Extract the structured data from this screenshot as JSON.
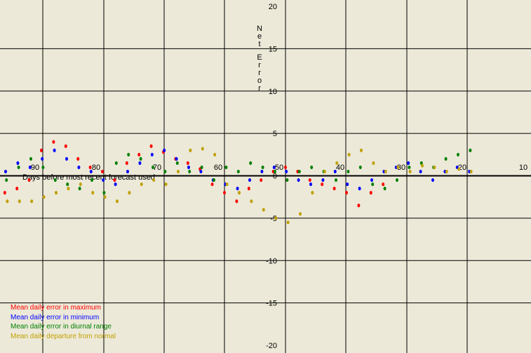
{
  "chart_data": {
    "type": "scatter",
    "title": "",
    "ylabel": "Net Error",
    "xlabel": "Days before most recent forecast used",
    "ylim": [
      -20,
      20
    ],
    "yticks": [
      "20",
      "15",
      "10",
      "5",
      "0",
      "-5",
      "-10",
      "-15",
      "-20"
    ],
    "xticks": [
      "90",
      "80",
      "70",
      "60",
      "50",
      "40",
      "30",
      "20",
      "10"
    ],
    "grid": true,
    "colors": {
      "max": "#ff0000",
      "min": "#0000ff",
      "range": "#008000",
      "normal": "#c0a000",
      "background": "#ece9d8"
    },
    "legend": [
      "Mean daily error in maximum",
      "Mean daily error in minimum",
      "Mean daily error in diurnal range",
      "Mean daily departure from normal"
    ],
    "legend_position": "bottom-left",
    "series": [
      {
        "name": "Mean daily error in maximum",
        "points": [
          [
            -100,
            1.5
          ],
          [
            -98,
            1
          ],
          [
            -95,
            2
          ],
          [
            -93,
            1.2
          ],
          [
            -91,
            0.8
          ],
          [
            -88,
            1.5
          ],
          [
            -86,
            -0.5
          ],
          [
            -84,
            -1
          ],
          [
            -82,
            2
          ],
          [
            -80,
            1.5
          ],
          [
            -78,
            1
          ],
          [
            -75,
            0.5
          ],
          [
            -73,
            -0.8
          ],
          [
            -70,
            0.5
          ],
          [
            -68,
            2
          ],
          [
            -66,
            3.5
          ],
          [
            -64,
            4
          ],
          [
            -62,
            3
          ],
          [
            -60,
            2.2
          ],
          [
            -58,
            1
          ],
          [
            -56,
            0.5
          ],
          [
            -54,
            1.5
          ],
          [
            -52,
            -1
          ],
          [
            -50,
            0.8
          ],
          [
            -48,
            -1.5
          ],
          [
            -46,
            -2
          ],
          [
            -44,
            -1.5
          ],
          [
            -42,
            -0.5
          ],
          [
            -40,
            3
          ],
          [
            -38,
            4
          ],
          [
            -36,
            3.5
          ],
          [
            -34,
            2
          ],
          [
            -32,
            1
          ],
          [
            -30,
            0.5
          ],
          [
            -28,
            -0.5
          ],
          [
            -26,
            1.5
          ],
          [
            -24,
            2.5
          ],
          [
            -22,
            3.5
          ],
          [
            -20,
            2.8
          ],
          [
            -18,
            2
          ],
          [
            -16,
            1.5
          ],
          [
            -14,
            0.8
          ],
          [
            -12,
            -1
          ],
          [
            -10,
            -2
          ],
          [
            -8,
            -3
          ],
          [
            -6,
            -1.5
          ],
          [
            -4,
            -0.5
          ],
          [
            -2,
            0.5
          ],
          [
            0,
            1
          ],
          [
            2,
            0.5
          ],
          [
            4,
            -0.5
          ],
          [
            6,
            -1
          ],
          [
            8,
            -1.5
          ],
          [
            10,
            -2
          ],
          [
            12,
            -3.5
          ],
          [
            14,
            -2
          ],
          [
            16,
            -1
          ]
        ]
      },
      {
        "name": "Mean daily error in minimum",
        "points": [
          [
            -100,
            2
          ],
          [
            -98,
            1.5
          ],
          [
            -95,
            1
          ],
          [
            -93,
            0.5
          ],
          [
            -91,
            -0.5
          ],
          [
            -88,
            -1
          ],
          [
            -86,
            -1.5
          ],
          [
            -84,
            0.5
          ],
          [
            -82,
            -1
          ],
          [
            -80,
            -0.5
          ],
          [
            -78,
            0.5
          ],
          [
            -75,
            -0.5
          ],
          [
            -73,
            -1
          ],
          [
            -70,
            1
          ],
          [
            -68,
            1.5
          ],
          [
            -66,
            2.5
          ],
          [
            -64,
            1
          ],
          [
            -62,
            0.5
          ],
          [
            -60,
            -0.5
          ],
          [
            -58,
            -1
          ],
          [
            -56,
            -2
          ],
          [
            -54,
            -1.5
          ],
          [
            -52,
            -2.5
          ],
          [
            -50,
            -1
          ],
          [
            -48,
            0
          ],
          [
            -46,
            0.5
          ],
          [
            -44,
            1.5
          ],
          [
            -42,
            1
          ],
          [
            -40,
            2
          ],
          [
            -38,
            3
          ],
          [
            -36,
            2
          ],
          [
            -34,
            1
          ],
          [
            -32,
            0.5
          ],
          [
            -30,
            -0.5
          ],
          [
            -28,
            -1
          ],
          [
            -26,
            0.5
          ],
          [
            -24,
            1.5
          ],
          [
            -22,
            2.5
          ],
          [
            -20,
            3
          ],
          [
            -18,
            2
          ],
          [
            -16,
            1
          ],
          [
            -14,
            0.5
          ],
          [
            -12,
            -0.5
          ],
          [
            -10,
            -1
          ],
          [
            -8,
            -1.5
          ],
          [
            -6,
            -0.5
          ],
          [
            -4,
            0.5
          ],
          [
            -2,
            1
          ],
          [
            0,
            0.5
          ],
          [
            2,
            -0.5
          ],
          [
            4,
            -1
          ],
          [
            6,
            -0.5
          ],
          [
            8,
            0.5
          ],
          [
            10,
            -1
          ],
          [
            12,
            -1.5
          ],
          [
            14,
            -0.5
          ],
          [
            16,
            0.5
          ],
          [
            18,
            1
          ],
          [
            20,
            1.5
          ],
          [
            22,
            0.5
          ],
          [
            24,
            -0.5
          ],
          [
            26,
            0.5
          ],
          [
            28,
            1
          ],
          [
            30,
            0.5
          ]
        ]
      },
      {
        "name": "Mean daily error in diurnal range",
        "points": [
          [
            -100,
            -0.5
          ],
          [
            -98,
            1
          ],
          [
            -95,
            2
          ],
          [
            -93,
            1.5
          ],
          [
            -91,
            0.5
          ],
          [
            -88,
            2.5
          ],
          [
            -86,
            1.5
          ],
          [
            -84,
            1
          ],
          [
            -82,
            1.5
          ],
          [
            -80,
            0.5
          ],
          [
            -78,
            -0.5
          ],
          [
            -75,
            1
          ],
          [
            -73,
            0.5
          ],
          [
            -70,
            -0.5
          ],
          [
            -68,
            1
          ],
          [
            -66,
            2
          ],
          [
            -64,
            3
          ],
          [
            -62,
            1.5
          ],
          [
            -60,
            0.5
          ],
          [
            -58,
            1
          ],
          [
            -56,
            -1
          ],
          [
            -54,
            -2.5
          ],
          [
            -52,
            -1.5
          ],
          [
            -50,
            0.5
          ],
          [
            -48,
            0.5
          ],
          [
            -46,
            -0.5
          ],
          [
            -44,
            1
          ],
          [
            -42,
            2
          ],
          [
            -40,
            1
          ],
          [
            -38,
            -0.5
          ],
          [
            -36,
            -1
          ],
          [
            -34,
            -1.5
          ],
          [
            -32,
            -0.5
          ],
          [
            -30,
            -2
          ],
          [
            -28,
            1.5
          ],
          [
            -26,
            2.5
          ],
          [
            -24,
            2
          ],
          [
            -22,
            1
          ],
          [
            -20,
            0.5
          ],
          [
            -18,
            1.5
          ],
          [
            -16,
            0.5
          ],
          [
            -14,
            1
          ],
          [
            -12,
            -0.5
          ],
          [
            -10,
            1
          ],
          [
            -8,
            0.5
          ],
          [
            -6,
            1.5
          ],
          [
            -4,
            1
          ],
          [
            -2,
            0.5
          ],
          [
            0,
            -0.5
          ],
          [
            2,
            0.5
          ],
          [
            4,
            1
          ],
          [
            6,
            0.5
          ],
          [
            8,
            -0.5
          ],
          [
            10,
            0.5
          ],
          [
            12,
            1
          ],
          [
            14,
            -1
          ],
          [
            16,
            -1.5
          ],
          [
            18,
            -0.5
          ],
          [
            20,
            1
          ],
          [
            22,
            1.5
          ],
          [
            24,
            1
          ],
          [
            26,
            2
          ],
          [
            28,
            2.5
          ],
          [
            30,
            3
          ]
        ]
      },
      {
        "name": "Mean daily departure from normal",
        "points": [
          [
            -100,
            -1
          ],
          [
            -98,
            -1.5
          ],
          [
            -95,
            -0.5
          ],
          [
            -93,
            0.5
          ],
          [
            -91,
            -1.5
          ],
          [
            -88,
            -2
          ],
          [
            -86,
            -1
          ],
          [
            -84,
            -2
          ],
          [
            -82,
            -1
          ],
          [
            -80,
            -2
          ],
          [
            -78,
            -1
          ],
          [
            -75,
            -0.5
          ],
          [
            -73,
            -1
          ],
          [
            -70,
            -1.5
          ],
          [
            -66,
            -0.5
          ],
          [
            -64,
            0.5
          ],
          [
            -56,
            2
          ],
          [
            -54,
            3.5
          ],
          [
            -52,
            2.5
          ],
          [
            -46,
            -3
          ],
          [
            -44,
            -3
          ],
          [
            -42,
            -3
          ],
          [
            -40,
            -2.5
          ],
          [
            -38,
            -2
          ],
          [
            -36,
            -1.5
          ],
          [
            -34,
            -1
          ],
          [
            -32,
            -2
          ],
          [
            -30,
            -2.5
          ],
          [
            -28,
            -3
          ],
          [
            -26,
            -2
          ],
          [
            -24,
            -1
          ],
          [
            -22,
            -0.5
          ],
          [
            -20,
            -1
          ],
          [
            -18,
            0.5
          ],
          [
            -16,
            3
          ],
          [
            -14,
            3.2
          ],
          [
            -12,
            2.5
          ],
          [
            -10,
            -1
          ],
          [
            -8,
            -2
          ],
          [
            -6,
            -3
          ],
          [
            -4,
            -4
          ],
          [
            -2,
            -5
          ],
          [
            0,
            -5.5
          ],
          [
            2,
            -4.5
          ],
          [
            4,
            -2
          ],
          [
            6,
            0.5
          ],
          [
            8,
            1.5
          ],
          [
            10,
            2.5
          ],
          [
            12,
            3
          ],
          [
            14,
            1.5
          ],
          [
            16,
            0.5
          ],
          [
            18,
            1
          ],
          [
            20,
            0.5
          ],
          [
            22,
            1.2
          ],
          [
            24,
            1
          ],
          [
            26,
            0.5
          ],
          [
            28,
            0.8
          ],
          [
            30,
            0.5
          ]
        ]
      }
    ]
  }
}
